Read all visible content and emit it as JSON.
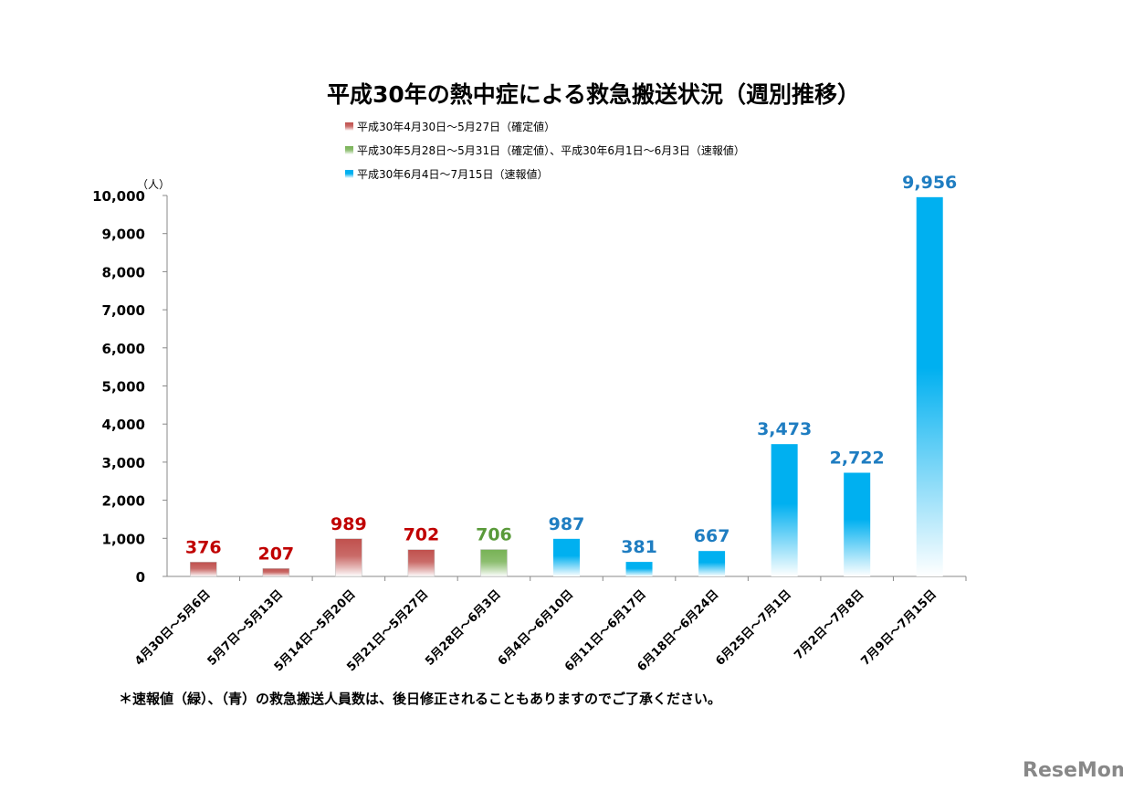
{
  "chart_data": {
    "type": "bar",
    "title": "平成30年の熱中症による救急搬送状況（週別推移）",
    "ylabel": "（人）",
    "ylim": [
      0,
      10000
    ],
    "yticks": [
      "0",
      "1,000",
      "2,000",
      "3,000",
      "4,000",
      "5,000",
      "6,000",
      "7,000",
      "8,000",
      "9,000",
      "10,000"
    ],
    "categories": [
      "4月30日～5月6日",
      "5月7日～5月13日",
      "5月14日～5月20日",
      "5月21日～5月27日",
      "5月28日～6月3日",
      "6月4日～6月10日",
      "6月11日～6月17日",
      "6月18日～6月24日",
      "6月25日～7月1日",
      "7月2日～7月8日",
      "7月9日～7月15日"
    ],
    "values": [
      376,
      207,
      989,
      702,
      706,
      987,
      381,
      667,
      3473,
      2722,
      9956
    ],
    "labels": [
      "376",
      "207",
      "989",
      "702",
      "706",
      "987",
      "381",
      "667",
      "3,473",
      "2,722",
      "9,956"
    ],
    "series_index": [
      0,
      0,
      0,
      0,
      1,
      2,
      2,
      2,
      2,
      2,
      2
    ],
    "legend": [
      {
        "label": "平成30年4月30日～5月27日（確定値）",
        "color": "#c0504d",
        "label_color": "#c00000"
      },
      {
        "label": "平成30年5月28日～5月31日（確定値）、平成30年6月1日～6月3日（速報値）",
        "color": "#77b255",
        "label_color": "#5a9a3a"
      },
      {
        "label": "平成30年6月4日～7月15日（速報値）",
        "color": "#00b0f0",
        "label_color": "#1f7dc1"
      }
    ],
    "grid": false,
    "legend_position": "top"
  },
  "note": "＊速報値（緑）、（青）の救急搬送人員数は、後日修正されることもありますのでご了承ください。",
  "watermark": "ReseMom"
}
